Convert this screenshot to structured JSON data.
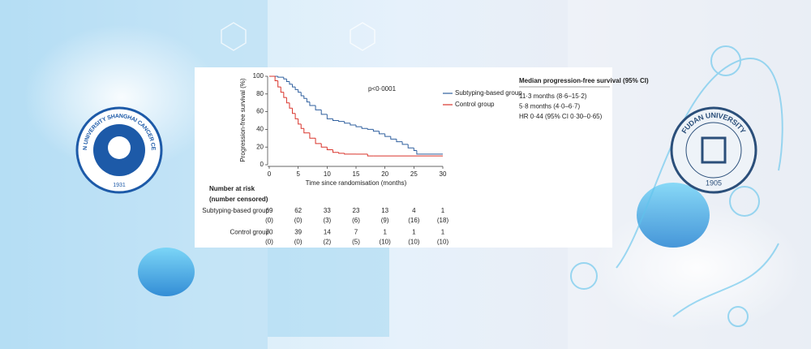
{
  "chart_data": {
    "type": "line",
    "step": true,
    "xlabel": "Time since randomisation (months)",
    "ylabel": "Progression-free survival (%)",
    "annotation": "p<0·0001",
    "xlim": [
      0,
      30
    ],
    "ylim": [
      0,
      100
    ],
    "xticks": [
      0,
      5,
      10,
      15,
      20,
      25,
      30
    ],
    "yticks": [
      0,
      20,
      40,
      60,
      80,
      100
    ],
    "series": [
      {
        "name": "Subtyping-based group",
        "color": "#2f5f9e",
        "x": [
          0,
          1.5,
          2.5,
          3,
          3.5,
          4,
          4.5,
          5,
          5.5,
          6,
          6.5,
          7,
          8,
          9,
          10,
          11,
          12,
          13,
          14,
          15,
          16,
          17,
          18,
          19,
          20,
          21,
          22,
          23,
          24,
          25,
          25.5,
          30
        ],
        "values": [
          100,
          99,
          97,
          94,
          91,
          88,
          85,
          82,
          78,
          75,
          71,
          67,
          62,
          57,
          52,
          50,
          49,
          47,
          45,
          43,
          41,
          40,
          38,
          35,
          32,
          29,
          26,
          23,
          19,
          16,
          12,
          12
        ]
      },
      {
        "name": "Control group",
        "color": "#d9342b",
        "x": [
          0,
          1,
          1.5,
          2,
          2.5,
          3,
          3.5,
          4,
          4.5,
          5,
          5.5,
          6,
          7,
          8,
          9,
          10,
          11,
          12,
          13,
          15,
          17,
          18,
          30
        ],
        "values": [
          100,
          95,
          88,
          82,
          76,
          70,
          64,
          58,
          52,
          46,
          41,
          36,
          30,
          24,
          20,
          17,
          14,
          13,
          12,
          12,
          10,
          10,
          10
        ]
      }
    ],
    "median_table": {
      "title": "Median progression-free survival (95% CI)",
      "rows": [
        "11·3 months (8·6–15·2)",
        "5·8 months (4·0–6·7)",
        "HR 0·44 (95% CI 0·30–0·65)"
      ]
    },
    "risk_table": {
      "title": "Number at risk",
      "subtitle": "(number censored)",
      "rows": [
        {
          "label": "Subtyping-based group",
          "at_risk": [
            69,
            62,
            33,
            23,
            13,
            4,
            1
          ],
          "censored": [
            "(0)",
            "(0)",
            "(3)",
            "(6)",
            "(9)",
            "(16)",
            "(18)"
          ]
        },
        {
          "label": "Control group",
          "at_risk": [
            70,
            39,
            14,
            7,
            1,
            1,
            1
          ],
          "censored": [
            "(0)",
            "(0)",
            "(2)",
            "(5)",
            "(10)",
            "(10)",
            "(10)"
          ]
        }
      ]
    }
  },
  "logos": [
    {
      "text": "FUDAN UNIVERSITY SHANGHAI CANCER CENTER",
      "year": "1931"
    },
    {
      "text": "FUDAN UNIVERSITY",
      "year": "1905"
    }
  ]
}
